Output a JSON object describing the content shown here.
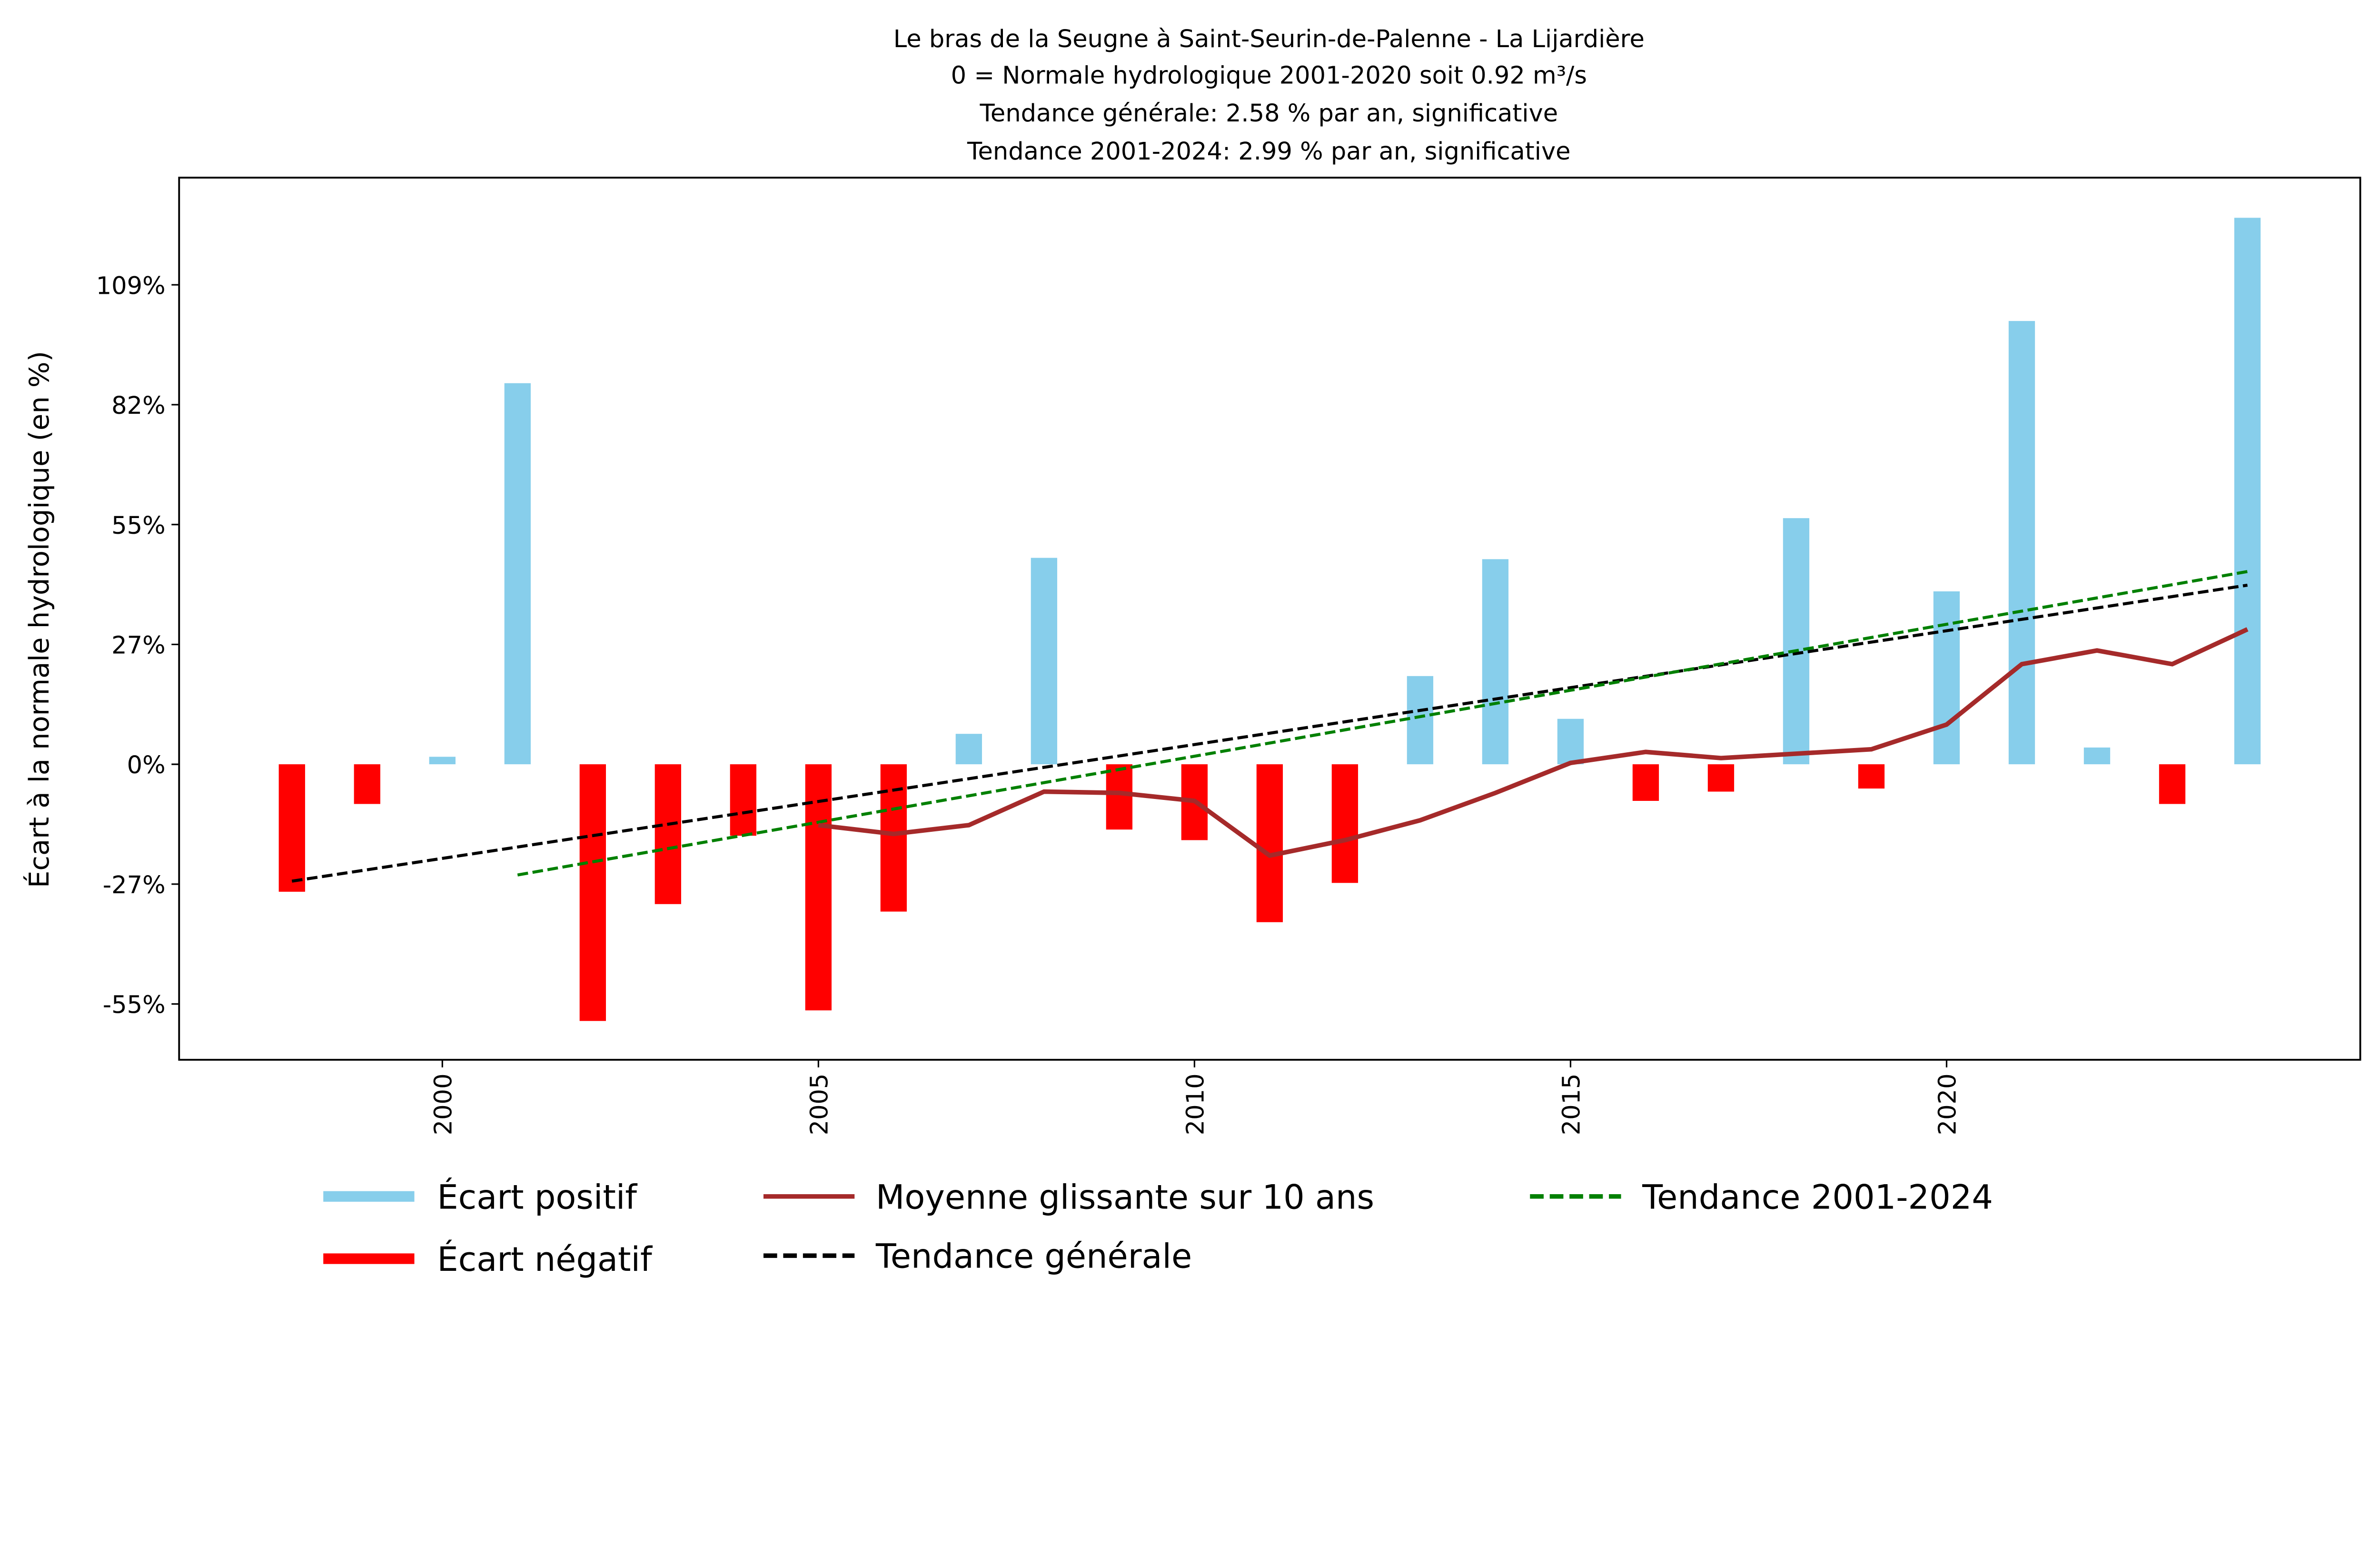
{
  "chart_data": {
    "type": "bar",
    "title_lines": [
      "Le bras de la Seugne à Saint-Seurin-de-Palenne - La Lijardière",
      "0 = Normale hydrologique 2001-2020 soit 0.92 m³/s",
      "Tendance générale: 2.58 % par an, significative",
      "Tendance 2001-2024: 2.99 % par an, significative"
    ],
    "xlabel": "",
    "ylabel": "Écart à la normale hydrologique (en %)",
    "xlim": [
      1996.5,
      2025.5
    ],
    "ylim": [
      -67,
      133
    ],
    "xticks": [
      2000,
      2005,
      2010,
      2015,
      2020
    ],
    "xtick_labels": [
      "2000",
      "2005",
      "2010",
      "2015",
      "2020"
    ],
    "yticks": [
      -54.35,
      -27.17,
      0,
      27.17,
      54.35,
      81.52,
      108.7
    ],
    "ytick_labels": [
      "-55%",
      "-27%",
      "0%",
      "27%",
      "55%",
      "82%",
      "109%"
    ],
    "years": [
      1998,
      1999,
      2000,
      2001,
      2002,
      2003,
      2004,
      2005,
      2006,
      2007,
      2008,
      2009,
      2010,
      2011,
      2012,
      2013,
      2014,
      2015,
      2016,
      2017,
      2018,
      2019,
      2020,
      2021,
      2022,
      2023,
      2024
    ],
    "values": [
      -28.9,
      -9.0,
      1.7,
      86.4,
      -58.2,
      -31.7,
      -16.2,
      -55.8,
      -33.4,
      6.9,
      46.8,
      -14.8,
      -17.2,
      -35.8,
      -26.9,
      20.0,
      46.5,
      10.3,
      -8.3,
      -6.2,
      55.8,
      -5.5,
      39.2,
      100.5,
      3.8,
      -9.0,
      123.9
    ],
    "moving_average": {
      "name": "Moyenne glissante sur 10 ans",
      "years": [
        2005,
        2006,
        2007,
        2008,
        2009,
        2010,
        2011,
        2012,
        2013,
        2014,
        2015,
        2016,
        2017,
        2018,
        2019,
        2020,
        2021,
        2022,
        2023,
        2024
      ],
      "values": [
        -13.8,
        -15.8,
        -13.8,
        -6.2,
        -6.5,
        -8.3,
        -20.7,
        -17.2,
        -12.7,
        -6.5,
        0.3,
        2.8,
        1.4,
        2.4,
        3.4,
        9.0,
        22.7,
        25.8,
        22.7,
        30.6
      ]
    },
    "trend_general": {
      "name": "Tendance générale",
      "x": [
        1998,
        2024
      ],
      "y": [
        -26.5,
        40.6
      ]
    },
    "trend_recent": {
      "name": "Tendance 2001-2024",
      "x": [
        2001,
        2024
      ],
      "y": [
        -25.1,
        43.7
      ]
    },
    "legend": {
      "positive": "Écart positif",
      "negative": "Écart négatif",
      "placement": "bottom-center"
    },
    "colors": {
      "positive": "#87ceeb",
      "negative": "#ff0000",
      "moving_average": "#a52a2a",
      "trend_general": "#000000",
      "trend_recent": "#008000"
    },
    "grid": false
  }
}
